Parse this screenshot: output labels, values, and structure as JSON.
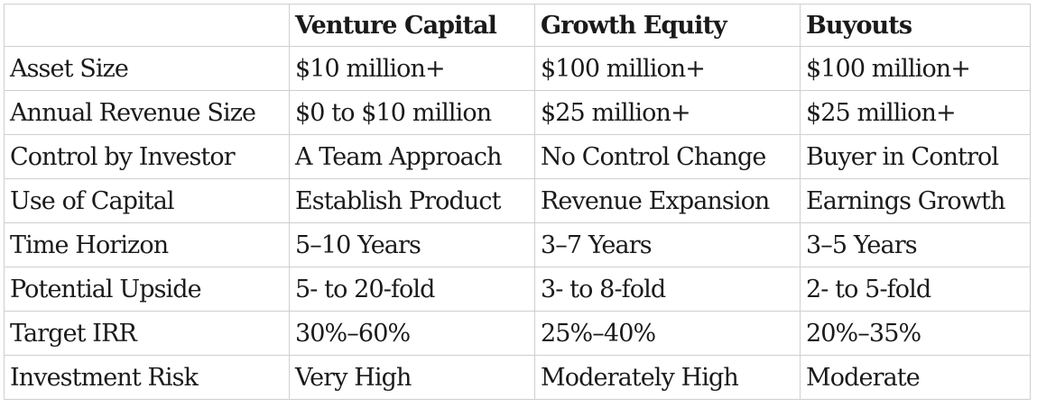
{
  "table": {
    "columns": [
      "",
      "Venture Capital",
      "Growth Equity",
      "Buyouts"
    ],
    "rows": [
      [
        "Asset Size",
        "$10 million+",
        "$100 million+",
        "$100 million+"
      ],
      [
        "Annual Revenue Size",
        "$0 to $10 million",
        "$25 million+",
        "$25 million+"
      ],
      [
        "Control by Investor",
        "A Team Approach",
        "No Control Change",
        "Buyer in Control"
      ],
      [
        "Use of Capital",
        "Establish Product",
        "Revenue Expansion",
        "Earnings Growth"
      ],
      [
        "Time Horizon",
        "5–10 Years",
        "3–7 Years",
        "3–5 Years"
      ],
      [
        "Potential Upside",
        "5- to 20-fold",
        "3- to 8-fold",
        "2- to 5-fold"
      ],
      [
        "Target IRR",
        "30%–60%",
        "25%–40%",
        "20%–35%"
      ],
      [
        "Investment Risk",
        "Very High",
        "Moderately High",
        "Moderate"
      ]
    ]
  }
}
